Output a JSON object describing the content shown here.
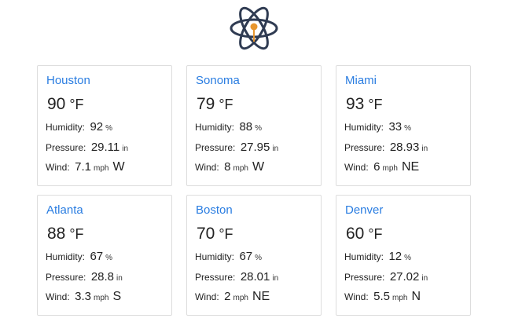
{
  "header": {
    "logo_icon": "atom-icon",
    "colors": {
      "orbit": "#2f3b52",
      "nucleus": "#e8962e"
    }
  },
  "units": {
    "temperature": "°F",
    "humidity": "%",
    "pressure": "in",
    "wind": "mph"
  },
  "labels": {
    "humidity": "Humidity:",
    "pressure": "Pressure:",
    "wind": "Wind:"
  },
  "cards": [
    {
      "city": "Houston",
      "temp": "90",
      "humidity": "92",
      "pressure": "29.11",
      "wind_speed": "7.1",
      "wind_dir": "W"
    },
    {
      "city": "Sonoma",
      "temp": "79",
      "humidity": "88",
      "pressure": "27.95",
      "wind_speed": "8",
      "wind_dir": "W"
    },
    {
      "city": "Miami",
      "temp": "93",
      "humidity": "33",
      "pressure": "28.93",
      "wind_speed": "6",
      "wind_dir": "NE"
    },
    {
      "city": "Atlanta",
      "temp": "88",
      "humidity": "67",
      "pressure": "28.8",
      "wind_speed": "3.3",
      "wind_dir": "S"
    },
    {
      "city": "Boston",
      "temp": "70",
      "humidity": "67",
      "pressure": "28.01",
      "wind_speed": "2",
      "wind_dir": "NE"
    },
    {
      "city": "Denver",
      "temp": "60",
      "humidity": "12",
      "pressure": "27.02",
      "wind_speed": "5.5",
      "wind_dir": "N"
    }
  ],
  "accent_color": "#2a7de1"
}
